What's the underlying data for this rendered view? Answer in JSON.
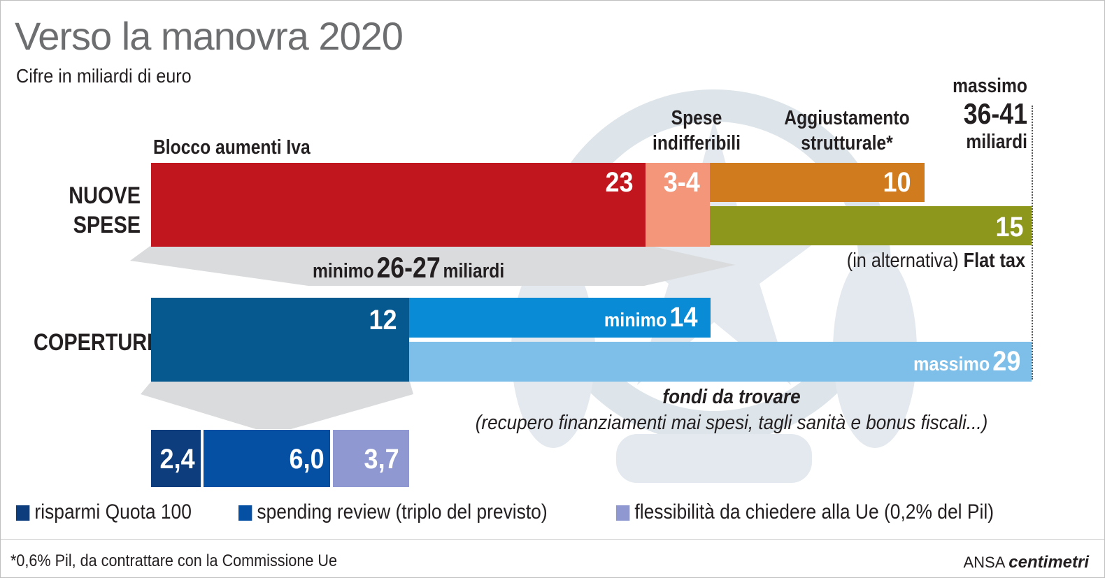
{
  "title": "Verso la manovra 2020",
  "subtitle": "Cifre in miliardi di euro",
  "chart_data": {
    "type": "bar",
    "title": "Verso la manovra 2020",
    "subtitle": "Cifre in miliardi di euro",
    "rows": [
      {
        "label": "NUOVE SPESE",
        "segments": [
          {
            "name": "Blocco aumenti Iva",
            "value": 23,
            "label": "23",
            "color": "#c1161e"
          },
          {
            "name": "Spese indifferibili",
            "value": 3.5,
            "label": "3-4",
            "color": "#f4967a"
          },
          {
            "name": "Aggiustamento strutturale*",
            "value": 10,
            "label": "10",
            "color": "#d17b1f"
          }
        ],
        "alternative": {
          "name": "Flat tax",
          "value": 15,
          "label": "15",
          "color": "#8c971b"
        }
      },
      {
        "label": "COPERTURE",
        "segments": [
          {
            "name": "coperture",
            "value": 12,
            "label": "12",
            "color": "#05598f"
          },
          {
            "name": "minimo",
            "value": 14,
            "label": "14",
            "color": "#0a8bd6"
          }
        ],
        "alternative": {
          "name": "massimo",
          "value": 29,
          "label": "29",
          "color": "#7dbfe9"
        },
        "breakdown": [
          {
            "name": "risparmi Quota 100",
            "value": 2.4,
            "label": "2,4",
            "color": "#0e3d7e"
          },
          {
            "name": "spending review (triplo del previsto)",
            "value": 6.0,
            "label": "6,0",
            "color": "#0650a4"
          },
          {
            "name": "flessibilità da chiedere alla Ue (0,2% del Pil)",
            "value": 3.7,
            "label": "3,7",
            "color": "#8f98d1"
          }
        ]
      }
    ],
    "annotations": {
      "minimo_text": "minimo",
      "minimo_value": "26-27",
      "minimo_unit": "miliardi",
      "massimo_text": "massimo",
      "massimo_value": "36-41",
      "massimo_unit": "miliardi",
      "flat_tax_prefix": "(in alternativa)",
      "flat_tax_name": "Flat tax",
      "fondi_line1": "fondi da trovare",
      "fondi_line2": "(recupero finanziamenti mai spesi, tagli sanità e bonus fiscali...)"
    }
  },
  "labels": {
    "blocco": "Blocco aumenti Iva",
    "spese_line1": "Spese",
    "spese_line2": "indifferibili",
    "agg_line1": "Aggiustamento",
    "agg_line2": "strutturale*",
    "nuove_line1": "NUOVE",
    "nuove_line2": "SPESE",
    "coperture": "COPERTURE",
    "minimo_word": "minimo",
    "massimo_word": "massimo"
  },
  "legend": [
    {
      "label": "risparmi Quota 100",
      "color": "#0e3d7e"
    },
    {
      "label": "spending review (triplo del previsto)",
      "color": "#0650a4"
    },
    {
      "label": "flessibilità da chiedere alla Ue (0,2% del Pil)",
      "color": "#8f98d1"
    }
  ],
  "footnote": "*0,6% Pil, da contrattare con la Commissione Ue",
  "brand": {
    "ansa": "ANSA",
    "centimetri": "centimetri"
  }
}
